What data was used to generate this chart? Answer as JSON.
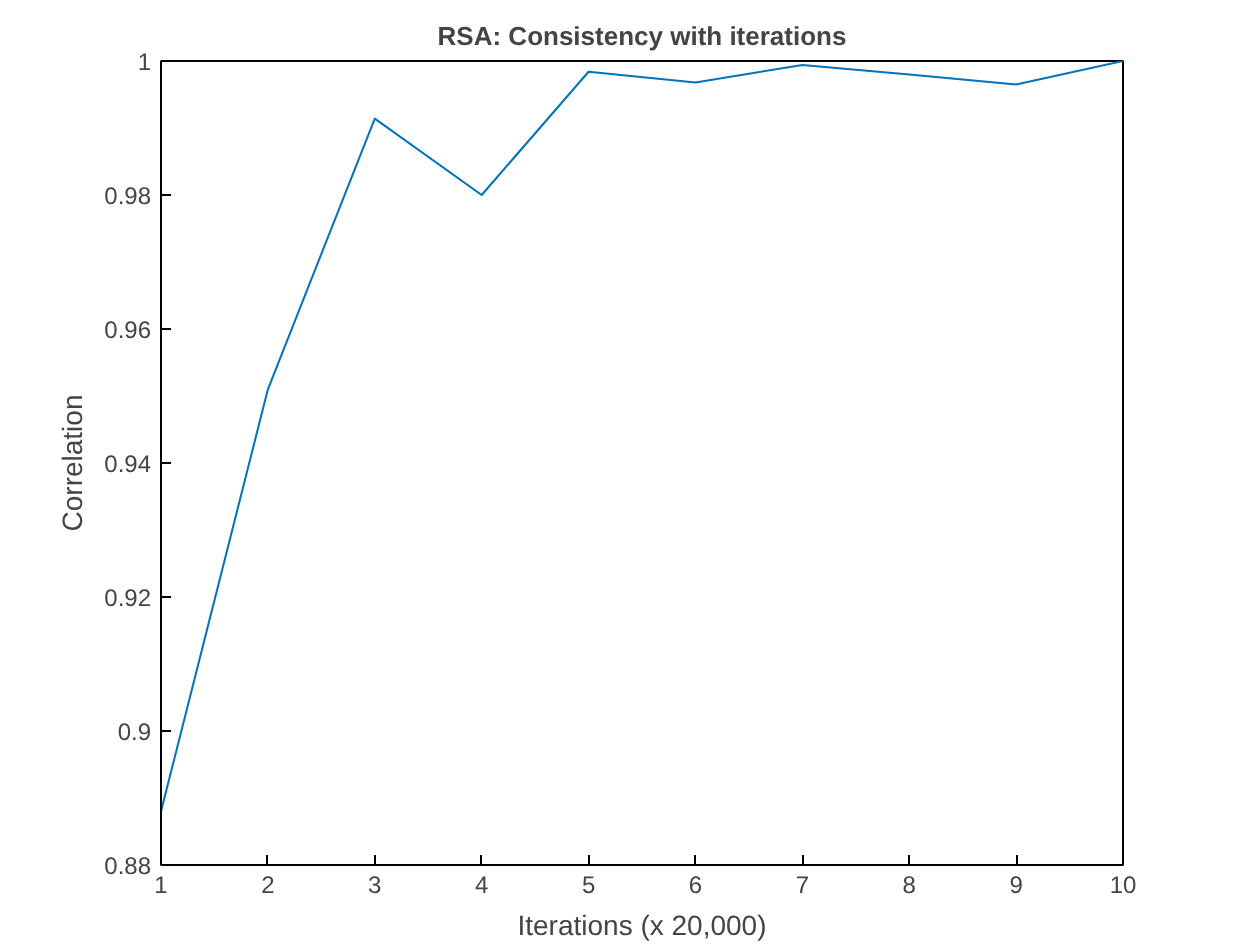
{
  "chart_data": {
    "type": "line",
    "title": "RSA: Consistency with iterations",
    "xlabel": "Iterations (x 20,000)",
    "ylabel": "Correlation",
    "x": [
      1,
      2,
      3,
      4,
      5,
      6,
      7,
      8,
      9,
      10
    ],
    "series": [
      {
        "color": "#0072bd",
        "values": [
          0.888,
          0.951,
          0.9914,
          0.98,
          0.9984,
          0.9968,
          0.9994,
          0.998,
          0.9965,
          1.0
        ]
      }
    ],
    "xlim": [
      1,
      10
    ],
    "ylim": [
      0.88,
      1
    ],
    "xticks": [
      1,
      2,
      3,
      4,
      5,
      6,
      7,
      8,
      9,
      10
    ],
    "yticks": [
      0.88,
      0.9,
      0.92,
      0.94,
      0.96,
      0.98,
      1
    ],
    "grid": false,
    "marker": "none",
    "line_style": "solid"
  }
}
